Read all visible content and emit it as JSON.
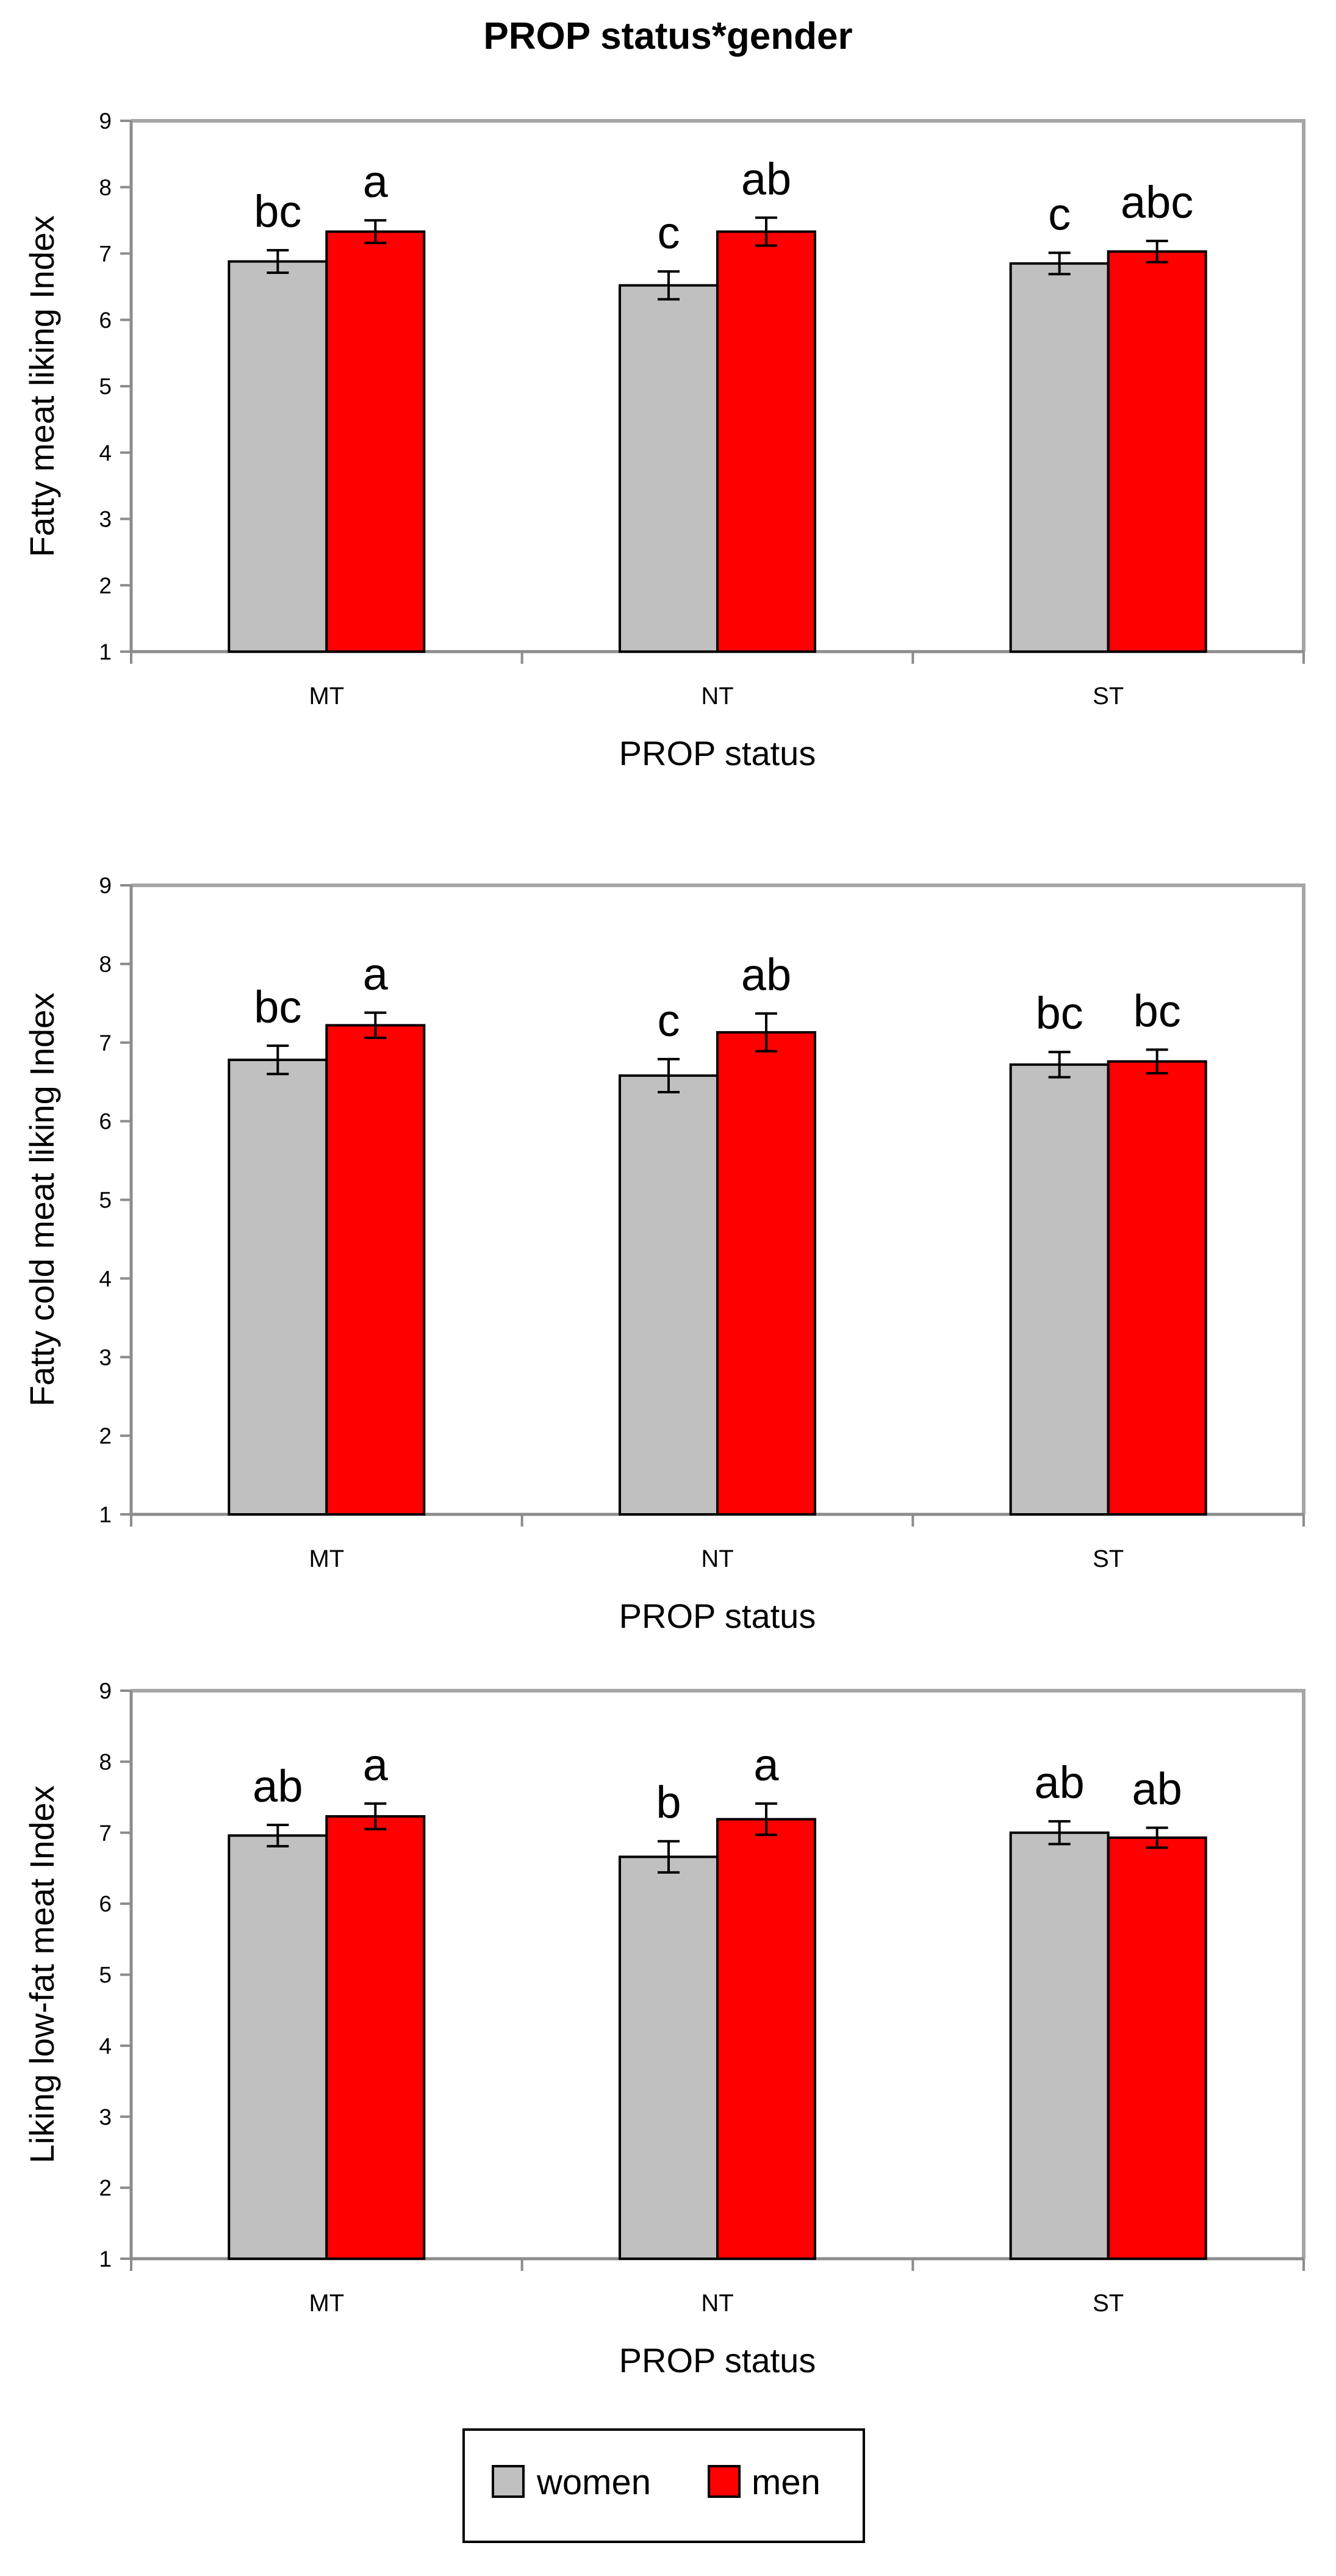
{
  "figure": {
    "title": "PROP status*gender"
  },
  "legend": {
    "placement": "bottom-center",
    "items": [
      {
        "label": "women",
        "color": "#c0c0c0"
      },
      {
        "label": "men",
        "color": "#ff0000"
      }
    ]
  },
  "colors": {
    "women": "#c0c0c0",
    "men": "#ff0000",
    "bar_outline": "#000000",
    "plot_border": "#a6a6a6"
  },
  "chart_data": [
    {
      "type": "bar",
      "title": "",
      "xlabel": "PROP status",
      "ylabel": "Fatty meat liking Index",
      "ylim": [
        1,
        9
      ],
      "yticks": [
        1,
        2,
        3,
        4,
        5,
        6,
        7,
        8,
        9
      ],
      "grid": false,
      "categories": [
        "MT",
        "NT",
        "ST"
      ],
      "series": [
        {
          "name": "women",
          "values": [
            6.88,
            6.52,
            6.85
          ],
          "errors": [
            0.17,
            0.21,
            0.16
          ],
          "letters": [
            "bc",
            "c",
            "c"
          ]
        },
        {
          "name": "men",
          "values": [
            7.33,
            7.33,
            7.03
          ],
          "errors": [
            0.17,
            0.21,
            0.16
          ],
          "letters": [
            "a",
            "ab",
            "abc"
          ]
        }
      ]
    },
    {
      "type": "bar",
      "title": "",
      "xlabel": "PROP status",
      "ylabel": "Fatty cold meat liking Index",
      "ylim": [
        1,
        9
      ],
      "yticks": [
        1,
        2,
        3,
        4,
        5,
        6,
        7,
        8,
        9
      ],
      "grid": false,
      "categories": [
        "MT",
        "NT",
        "ST"
      ],
      "series": [
        {
          "name": "women",
          "values": [
            6.78,
            6.58,
            6.72
          ],
          "errors": [
            0.18,
            0.21,
            0.16
          ],
          "letters": [
            "bc",
            "c",
            "bc"
          ]
        },
        {
          "name": "men",
          "values": [
            7.22,
            7.13,
            6.76
          ],
          "errors": [
            0.16,
            0.24,
            0.15
          ],
          "letters": [
            "a",
            "ab",
            "bc"
          ]
        }
      ]
    },
    {
      "type": "bar",
      "title": "",
      "xlabel": "PROP status",
      "ylabel": "Liking low-fat meat Index",
      "ylim": [
        1,
        9
      ],
      "yticks": [
        1,
        2,
        3,
        4,
        5,
        6,
        7,
        8,
        9
      ],
      "grid": false,
      "categories": [
        "MT",
        "NT",
        "ST"
      ],
      "series": [
        {
          "name": "women",
          "values": [
            6.96,
            6.66,
            7.0
          ],
          "errors": [
            0.15,
            0.22,
            0.16
          ],
          "letters": [
            "ab",
            "b",
            "ab"
          ]
        },
        {
          "name": "men",
          "values": [
            7.23,
            7.19,
            6.93
          ],
          "errors": [
            0.18,
            0.22,
            0.14
          ],
          "letters": [
            "a",
            "a",
            "ab"
          ]
        }
      ]
    }
  ]
}
